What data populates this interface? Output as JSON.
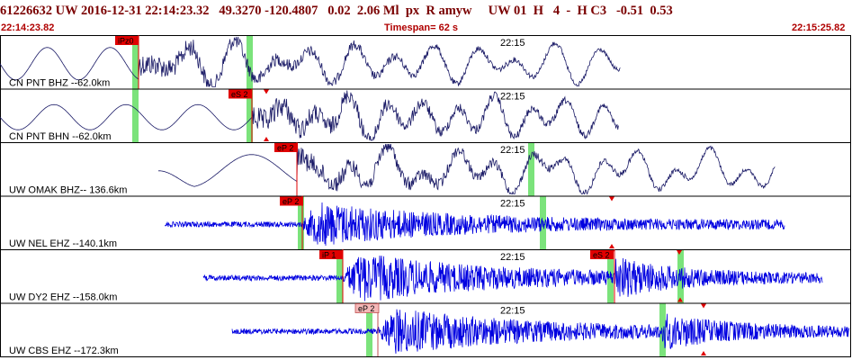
{
  "header": {
    "title": "61226632 UW 2016-12-31 22:14:23.32   49.3270 -120.4807   0.02  2.06 Ml  px  R amyw     UW 01  H   4  -  H C3   -0.51  0.53"
  },
  "timebar": {
    "start": "22:14:23.82",
    "span": "Timespan=  62 s",
    "end": "22:15:25.82"
  },
  "colors": {
    "trace_dark": "#1a1a66",
    "trace_blue": "#0000e0",
    "pick_red": "#e00000",
    "pick_pink": "#f4b8b8",
    "window_green": "#7be37b"
  },
  "traces": [
    {
      "label": "CN PNT BHZ --62.0km",
      "tick": "22:15",
      "picks": [
        {
          "text": "iPz0",
          "style": "red"
        }
      ]
    },
    {
      "label": "CN PNT BHN --62.0km",
      "tick": "22:15",
      "picks": [
        {
          "text": "eS 2",
          "style": "red"
        }
      ]
    },
    {
      "label": "UW OMAK BHZ-- 136.6km",
      "tick": "22:15",
      "picks": [
        {
          "text": "eP 2",
          "style": "red"
        }
      ]
    },
    {
      "label": "UW NEL EHZ --140.1km",
      "tick": "22:15",
      "picks": [
        {
          "text": "eP 2",
          "style": "red"
        }
      ]
    },
    {
      "label": "UW DY2 EHZ --158.0km",
      "tick": "22:15",
      "picks": [
        {
          "text": "iP 1",
          "style": "red"
        },
        {
          "text": "eS 2",
          "style": "red"
        }
      ]
    },
    {
      "label": "UW CBS EHZ --172.3km",
      "tick": "22:15",
      "picks": [
        {
          "text": "eP 2",
          "style": "pink"
        }
      ]
    }
  ]
}
